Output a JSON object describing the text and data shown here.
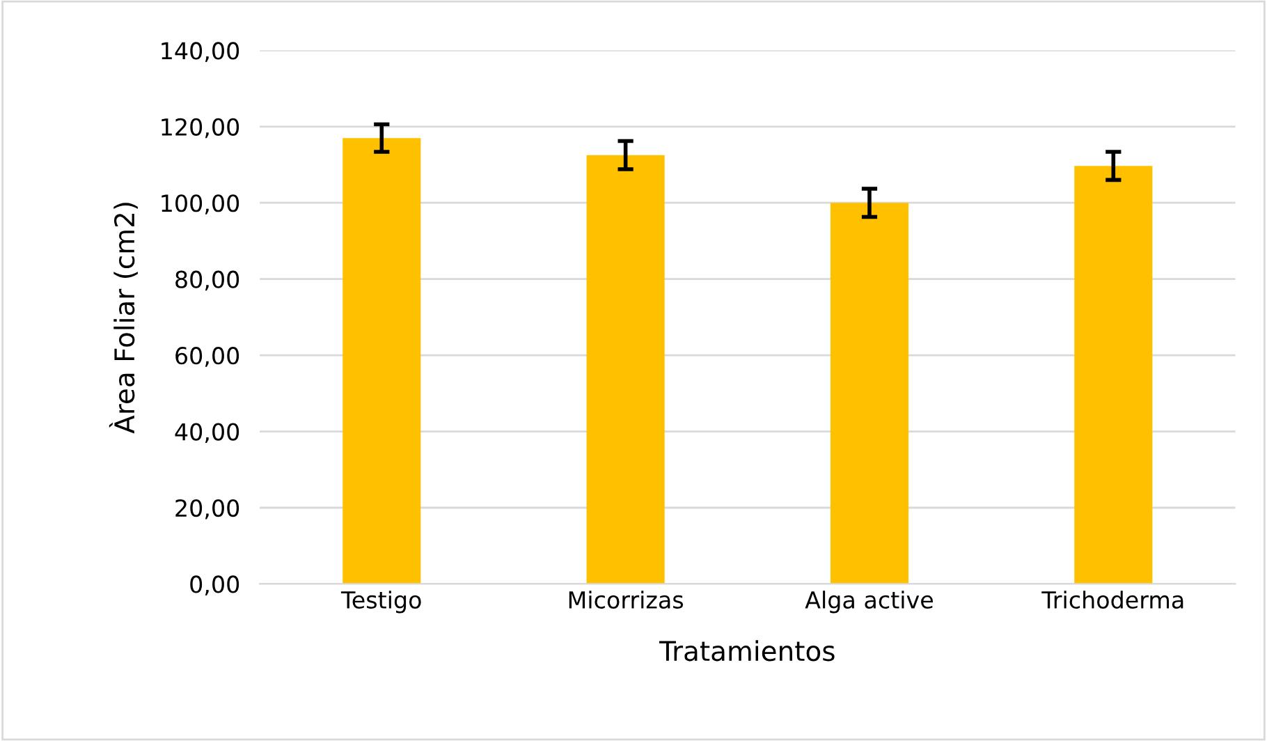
{
  "chart_data": {
    "type": "bar",
    "xlabel": "Tratamientos",
    "ylabel": "Àrea Foliar (cm2)",
    "categories": [
      "Testigo",
      "Micorrizas",
      "Alga active",
      "Trichoderma"
    ],
    "values": [
      117.0,
      112.5,
      100.0,
      109.7
    ],
    "errors": [
      3.6,
      3.7,
      3.7,
      3.7
    ],
    "color": "#ffc000",
    "ylim": [
      0,
      140
    ],
    "yticks": [
      {
        "value": 0,
        "label": "0,00"
      },
      {
        "value": 20,
        "label": "20,00"
      },
      {
        "value": 40,
        "label": "40,00"
      },
      {
        "value": 60,
        "label": "60,00"
      },
      {
        "value": 80,
        "label": "80,00"
      },
      {
        "value": 100,
        "label": "100,00"
      },
      {
        "value": 120,
        "label": "120,00"
      },
      {
        "value": 140,
        "label": "140,00"
      }
    ],
    "grid": "y"
  }
}
